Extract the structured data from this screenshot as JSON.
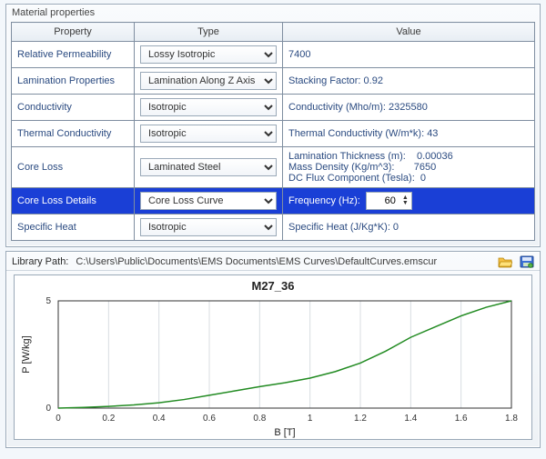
{
  "panel_title": "Material properties",
  "columns": {
    "prop": "Property",
    "type": "Type",
    "value": "Value"
  },
  "rows": [
    {
      "prop": "Relative Permeability",
      "type": "Lossy Isotropic",
      "value": "7400",
      "selected": false
    },
    {
      "prop": "Lamination Properties",
      "type": "Lamination Along Z Axis",
      "value": "Stacking Factor: 0.92",
      "selected": false
    },
    {
      "prop": "Conductivity",
      "type": "Isotropic",
      "value": "Conductivity (Mho/m): 2325580",
      "selected": false
    },
    {
      "prop": "Thermal Conductivity",
      "type": "Isotropic",
      "value": "Thermal Conductivity (W/m*k): 43",
      "selected": false
    },
    {
      "prop": "Core Loss",
      "type": "Laminated Steel",
      "value": "Lamination Thickness (m):    0.00036\nMass Density (Kg/m^3):       7650\nDC Flux Component (Tesla):  0",
      "selected": false
    },
    {
      "prop": "Core Loss Details",
      "type": "Core Loss Curve",
      "value_kind": "freq",
      "freq_label": "Frequency (Hz):",
      "freq_value": "60",
      "selected": true
    },
    {
      "prop": "Specific Heat",
      "type": "Isotropic",
      "value": "Specific Heat (J/Kg*K): 0",
      "selected": false
    }
  ],
  "library": {
    "label": "Library Path:",
    "path": "C:\\Users\\Public\\Documents\\EMS Documents\\EMS Curves\\DefaultCurves.emscur"
  },
  "chart": {
    "type": "line",
    "title": "M27_36",
    "xlabel": "B [T]",
    "ylabel": "P [W/kg]",
    "xlim": [
      0,
      1.8
    ],
    "ylim": [
      0,
      5
    ],
    "xtick_step": 0.2,
    "ytick_step": 5,
    "series_color": "#228b22",
    "background_color": "#ffffff",
    "grid_color": "#d8dde2",
    "axis_color": "#333333",
    "line_width": 1.5,
    "data": [
      {
        "x": 0.0,
        "y": 0.0
      },
      {
        "x": 0.1,
        "y": 0.03
      },
      {
        "x": 0.2,
        "y": 0.08
      },
      {
        "x": 0.3,
        "y": 0.15
      },
      {
        "x": 0.4,
        "y": 0.25
      },
      {
        "x": 0.5,
        "y": 0.4
      },
      {
        "x": 0.6,
        "y": 0.6
      },
      {
        "x": 0.7,
        "y": 0.8
      },
      {
        "x": 0.8,
        "y": 1.0
      },
      {
        "x": 0.9,
        "y": 1.18
      },
      {
        "x": 1.0,
        "y": 1.4
      },
      {
        "x": 1.1,
        "y": 1.7
      },
      {
        "x": 1.2,
        "y": 2.1
      },
      {
        "x": 1.3,
        "y": 2.65
      },
      {
        "x": 1.4,
        "y": 3.3
      },
      {
        "x": 1.5,
        "y": 3.8
      },
      {
        "x": 1.6,
        "y": 4.3
      },
      {
        "x": 1.7,
        "y": 4.7
      },
      {
        "x": 1.8,
        "y": 5.0
      }
    ]
  }
}
